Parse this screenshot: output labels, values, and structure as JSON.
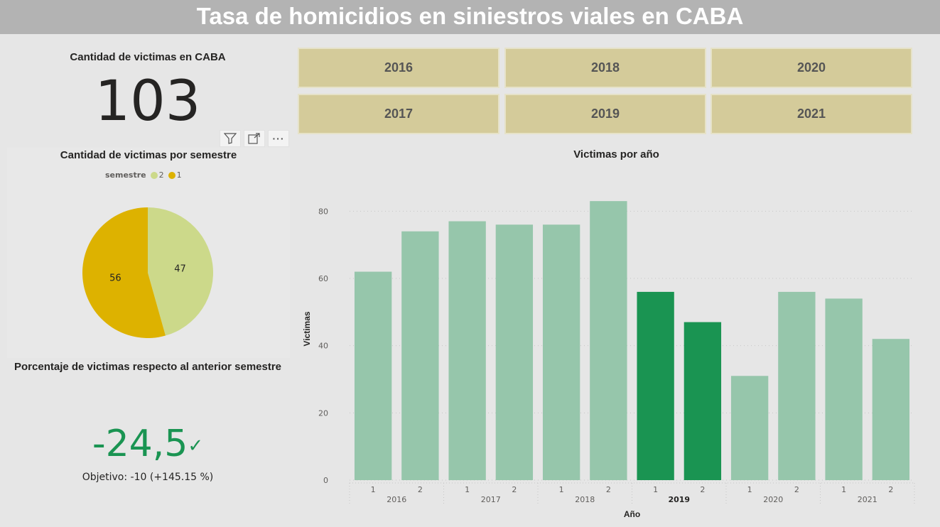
{
  "header": {
    "title": "Tasa de homicidios en siniestros viales en CABA"
  },
  "kpi": {
    "title": "Cantidad de victimas en CABA",
    "value": "103"
  },
  "visual_toolbar": {
    "icons": [
      "filter-icon",
      "focus-mode-icon",
      "more-options-icon"
    ],
    "more_glyph": "···"
  },
  "pie": {
    "title": "Cantidad de victimas por semestre",
    "legend_title": "semestre",
    "slices": [
      {
        "label": "2",
        "value": 47,
        "color": "#ccd98a"
      },
      {
        "label": "1",
        "value": 56,
        "color": "#ddb200"
      }
    ]
  },
  "percentage": {
    "title": "Porcentaje de victimas respecto al anterior semestre",
    "value": "-24,5",
    "check": "✓",
    "goal": "Objetivo: -10 (+145.15 %)"
  },
  "slicer": {
    "years": [
      "2016",
      "2018",
      "2020",
      "2017",
      "2019",
      "2021"
    ]
  },
  "chart_data": {
    "type": "bar",
    "title": "Victimas por año",
    "xlabel": "Año",
    "ylabel": "Victimas",
    "ylim": [
      0,
      90
    ],
    "yticks": [
      0,
      20,
      40,
      60,
      80
    ],
    "grid": true,
    "categories": [
      {
        "year": "2016",
        "semester": "1",
        "value": 62,
        "selected": false
      },
      {
        "year": "2016",
        "semester": "2",
        "value": 74,
        "selected": false
      },
      {
        "year": "2017",
        "semester": "1",
        "value": 77,
        "selected": false
      },
      {
        "year": "2017",
        "semester": "2",
        "value": 76,
        "selected": false
      },
      {
        "year": "2018",
        "semester": "1",
        "value": 76,
        "selected": false
      },
      {
        "year": "2018",
        "semester": "2",
        "value": 83,
        "selected": false
      },
      {
        "year": "2019",
        "semester": "1",
        "value": 56,
        "selected": true
      },
      {
        "year": "2019",
        "semester": "2",
        "value": 47,
        "selected": true
      },
      {
        "year": "2020",
        "semester": "1",
        "value": 31,
        "selected": false
      },
      {
        "year": "2020",
        "semester": "2",
        "value": 56,
        "selected": false
      },
      {
        "year": "2021",
        "semester": "1",
        "value": 54,
        "selected": false
      },
      {
        "year": "2021",
        "semester": "2",
        "value": 42,
        "selected": false
      }
    ],
    "colors": {
      "normal": "#96c6ab",
      "selected": "#1a9452"
    }
  }
}
